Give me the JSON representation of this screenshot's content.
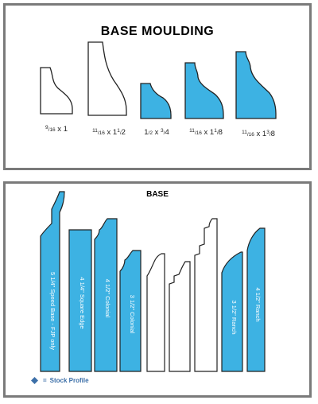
{
  "colors": {
    "stock": "#3db2e3",
    "nonstock": "#ffffff",
    "outline": "#222222",
    "frame": "#7a7a7a",
    "legend_text": "#3c6fa8"
  },
  "top_panel": {
    "title": "BASE MOULDING",
    "profiles": [
      {
        "stock": false,
        "size": {
          "a_num": "9",
          "a_den": "16",
          "a_whole": "",
          "b_whole": "1",
          "b_num": "",
          "b_den": ""
        }
      },
      {
        "stock": false,
        "size": {
          "a_num": "11",
          "a_den": "16",
          "a_whole": "",
          "b_whole": "1",
          "b_num": "1",
          "b_den": "2"
        }
      },
      {
        "stock": true,
        "size": {
          "a_num": "1",
          "a_den": "2",
          "a_whole": "",
          "b_whole": "",
          "b_num": "3",
          "b_den": "4"
        }
      },
      {
        "stock": true,
        "size": {
          "a_num": "11",
          "a_den": "16",
          "a_whole": "",
          "b_whole": "1",
          "b_num": "1",
          "b_den": "8"
        }
      },
      {
        "stock": true,
        "size": {
          "a_num": "11",
          "a_den": "16",
          "a_whole": "",
          "b_whole": "1",
          "b_num": "3",
          "b_den": "8"
        }
      }
    ]
  },
  "bottom_panel": {
    "title": "BASE",
    "profiles": [
      {
        "stock": true,
        "label": "5 1/4\" Speed Base - FJP only"
      },
      {
        "stock": true,
        "label": "4 1/4\" Square Edge"
      },
      {
        "stock": true,
        "label": "4 1/2\" Colonial"
      },
      {
        "stock": true,
        "label": "3 1/2\" Colonial"
      },
      {
        "stock": false,
        "label": ""
      },
      {
        "stock": false,
        "label": ""
      },
      {
        "stock": false,
        "label": ""
      },
      {
        "stock": true,
        "label": "3 1/2\" Ranch"
      },
      {
        "stock": true,
        "label": "4 1/2\" Ranch"
      }
    ],
    "legend": {
      "marker_icon": "diamond-icon",
      "equals": "=",
      "text": "Stock Profile"
    }
  }
}
